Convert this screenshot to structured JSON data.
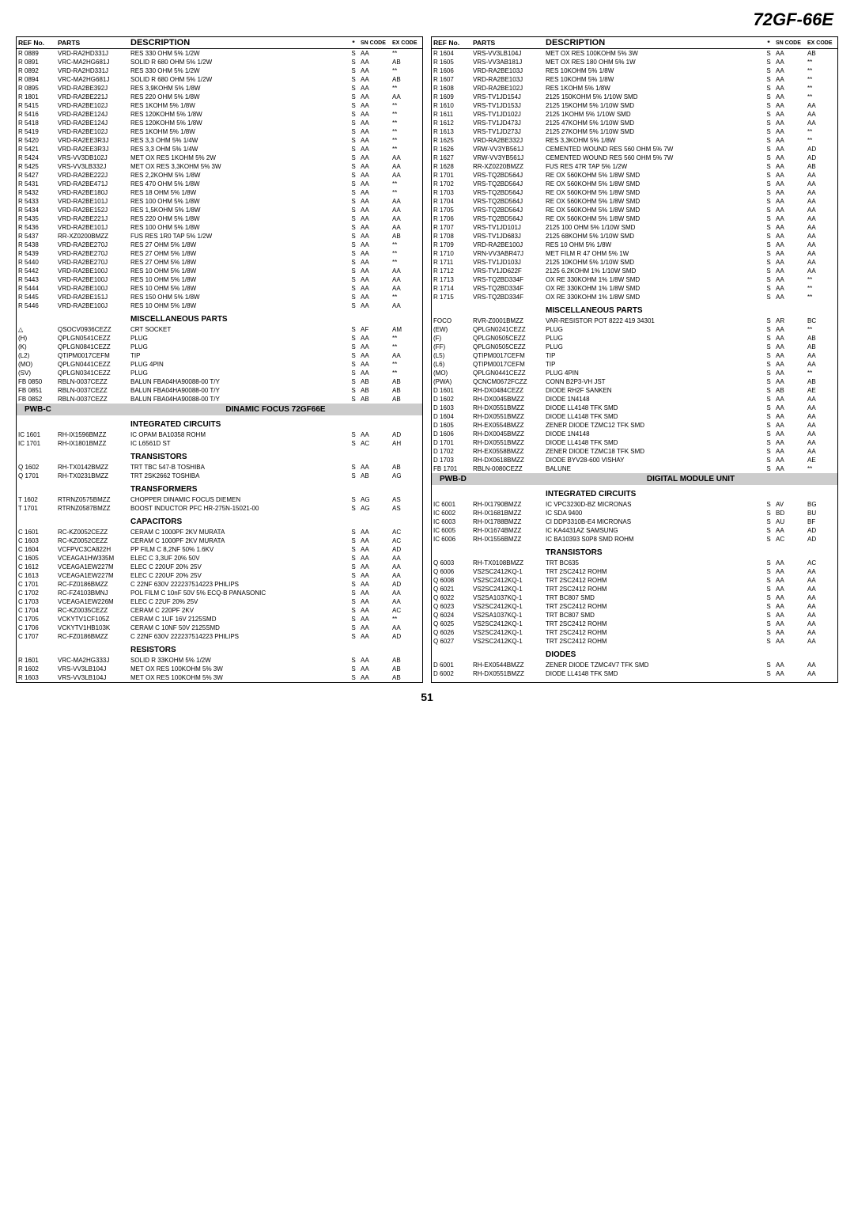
{
  "header": "72GF-66E",
  "page_number": "51",
  "table_headers": {
    "ref": "REF No.",
    "parts": "PARTS",
    "desc": "DESCRIPTION",
    "star": "*",
    "sn": "SN CODE",
    "ex": "EX CODE"
  },
  "left_rows": [
    {
      "r": "R 0889",
      "p": "VRD-RA2HD331J",
      "d": "RES 330 OHM 5% 1/2W",
      "s": "S",
      "sn": "AA",
      "ex": "**"
    },
    {
      "r": "R 0891",
      "p": "VRC-MA2HG681J",
      "d": "SOLID R 680 OHM 5% 1/2W",
      "s": "S",
      "sn": "AA",
      "ex": "AB"
    },
    {
      "r": "R 0892",
      "p": "VRD-RA2HD331J",
      "d": "RES 330 OHM 5% 1/2W",
      "s": "S",
      "sn": "AA",
      "ex": "**"
    },
    {
      "r": "R 0894",
      "p": "VRC-MA2HG681J",
      "d": "SOLID R 680 OHM 5% 1/2W",
      "s": "S",
      "sn": "AA",
      "ex": "AB"
    },
    {
      "r": "R 0895",
      "p": "VRD-RA2BE392J",
      "d": "RES 3,9KOHM 5% 1/8W",
      "s": "S",
      "sn": "AA",
      "ex": "**"
    },
    {
      "r": "R 1801",
      "p": "VRD-RA2BE221J",
      "d": "RES 220 OHM 5% 1/8W",
      "s": "S",
      "sn": "AA",
      "ex": "AA"
    },
    {
      "r": "R 5415",
      "p": "VRD-RA2BE102J",
      "d": "RES  1KOHM 5% 1/8W",
      "s": "S",
      "sn": "AA",
      "ex": "**"
    },
    {
      "r": "R 5416",
      "p": "VRD-RA2BE124J",
      "d": "RES 120KOHM 5% 1/8W",
      "s": "S",
      "sn": "AA",
      "ex": "**"
    },
    {
      "r": "R 5418",
      "p": "VRD-RA2BE124J",
      "d": "RES 120KOHM 5% 1/8W",
      "s": "S",
      "sn": "AA",
      "ex": "**"
    },
    {
      "r": "R 5419",
      "p": "VRD-RA2BE102J",
      "d": "RES  1KOHM 5% 1/8W",
      "s": "S",
      "sn": "AA",
      "ex": "**"
    },
    {
      "r": "R 5420",
      "p": "VRD-RA2EE3R3J",
      "d": "RES 3,3 OHM 5% 1/4W",
      "s": "S",
      "sn": "AA",
      "ex": "**"
    },
    {
      "r": "R 5421",
      "p": "VRD-RA2EE3R3J",
      "d": "RES 3,3 OHM 5% 1/4W",
      "s": "S",
      "sn": "AA",
      "ex": "**"
    },
    {
      "r": "R 5424",
      "p": "VRS-VV3DB102J",
      "d": "MET OX RES  1KOHM 5% 2W",
      "s": "S",
      "sn": "AA",
      "ex": "AA"
    },
    {
      "r": "R 5425",
      "p": "VRS-VV3LB332J",
      "d": "MET OX RES 3,3KOHM 5% 3W",
      "s": "S",
      "sn": "AA",
      "ex": "AA"
    },
    {
      "r": "R 5427",
      "p": "VRD-RA2BE222J",
      "d": "RES 2,2KOHM 5% 1/8W",
      "s": "S",
      "sn": "AA",
      "ex": "AA"
    },
    {
      "r": "R 5431",
      "p": "VRD-RA2BE471J",
      "d": "RES 470 OHM 5% 1/8W",
      "s": "S",
      "sn": "AA",
      "ex": "**"
    },
    {
      "r": "R 5432",
      "p": "VRD-RA2BE180J",
      "d": "RES 18 OHM 5% 1/8W",
      "s": "S",
      "sn": "AA",
      "ex": "**"
    },
    {
      "r": "R 5433",
      "p": "VRD-RA2BE101J",
      "d": "RES 100 OHM 5% 1/8W",
      "s": "S",
      "sn": "AA",
      "ex": "AA"
    },
    {
      "r": "R 5434",
      "p": "VRD-RA2BE152J",
      "d": "RES 1,5KOHM 5% 1/8W",
      "s": "S",
      "sn": "AA",
      "ex": "AA"
    },
    {
      "r": "R 5435",
      "p": "VRD-RA2BE221J",
      "d": "RES 220 OHM 5% 1/8W",
      "s": "S",
      "sn": "AA",
      "ex": "AA"
    },
    {
      "r": "R 5436",
      "p": "VRD-RA2BE101J",
      "d": "RES 100 OHM 5% 1/8W",
      "s": "S",
      "sn": "AA",
      "ex": "AA"
    },
    {
      "r": "R 5437",
      "p": "RR-XZ0200BMZZ",
      "d": "FUS RES 1R0 TAP 5% 1/2W",
      "s": "S",
      "sn": "AA",
      "ex": "AB"
    },
    {
      "r": "R 5438",
      "p": "VRD-RA2BE270J",
      "d": "RES 27 OHM 5% 1/8W",
      "s": "S",
      "sn": "AA",
      "ex": "**"
    },
    {
      "r": "R 5439",
      "p": "VRD-RA2BE270J",
      "d": "RES 27 OHM 5% 1/8W",
      "s": "S",
      "sn": "AA",
      "ex": "**"
    },
    {
      "r": "R 5440",
      "p": "VRD-RA2BE270J",
      "d": "RES 27 OHM 5% 1/8W",
      "s": "S",
      "sn": "AA",
      "ex": "**"
    },
    {
      "r": "R 5442",
      "p": "VRD-RA2BE100J",
      "d": "RES 10 OHM 5% 1/8W",
      "s": "S",
      "sn": "AA",
      "ex": "AA"
    },
    {
      "r": "R 5443",
      "p": "VRD-RA2BE100J",
      "d": "RES 10 OHM 5% 1/8W",
      "s": "S",
      "sn": "AA",
      "ex": "AA"
    },
    {
      "r": "R 5444",
      "p": "VRD-RA2BE100J",
      "d": "RES 10 OHM 5% 1/8W",
      "s": "S",
      "sn": "AA",
      "ex": "AA"
    },
    {
      "r": "R 5445",
      "p": "VRD-RA2BE151J",
      "d": "RES 150 OHM 5% 1/8W",
      "s": "S",
      "sn": "AA",
      "ex": "**"
    },
    {
      "r": "R 5446",
      "p": "VRD-RA2BE100J",
      "d": "RES 10 OHM 5% 1/8W",
      "s": "S",
      "sn": "AA",
      "ex": "AA"
    },
    {
      "section": "MISCELLANEOUS PARTS"
    },
    {
      "r": "△",
      "p": "QSOCV0936CEZZ",
      "d": "CRT SOCKET",
      "s": "S",
      "sn": "AF",
      "ex": "AM"
    },
    {
      "r": "(H)",
      "p": "QPLGN0541CEZZ",
      "d": "PLUG",
      "s": "S",
      "sn": "AA",
      "ex": "**"
    },
    {
      "r": "(K)",
      "p": "QPLGN0841CEZZ",
      "d": "PLUG",
      "s": "S",
      "sn": "AA",
      "ex": "**"
    },
    {
      "r": "(L2)",
      "p": "QTIPM0017CEFM",
      "d": "TIP",
      "s": "S",
      "sn": "AA",
      "ex": "AA"
    },
    {
      "r": "(MO)",
      "p": "QPLGN0441CEZZ",
      "d": "PLUG 4PIN",
      "s": "S",
      "sn": "AA",
      "ex": "**"
    },
    {
      "r": "(SV)",
      "p": "QPLGN0341CEZZ",
      "d": "PLUG",
      "s": "S",
      "sn": "AA",
      "ex": "**"
    },
    {
      "r": "FB 0850",
      "p": "RBLN-0037CEZZ",
      "d": "BALUN FBA04HA90088-00 T/Y",
      "s": "S",
      "sn": "AB",
      "ex": "AB"
    },
    {
      "r": "FB 0851",
      "p": "RBLN-0037CEZZ",
      "d": "BALUN FBA04HA90088-00 T/Y",
      "s": "S",
      "sn": "AB",
      "ex": "AB"
    },
    {
      "r": "FB 0852",
      "p": "RBLN-0037CEZZ",
      "d": "BALUN FBA04HA90088-00 T/Y",
      "s": "S",
      "sn": "AB",
      "ex": "AB"
    },
    {
      "banner": true,
      "left": "PWB-C",
      "right": "DINAMIC FOCUS 72GF66E"
    },
    {
      "section": "INTEGRATED CIRCUITS"
    },
    {
      "r": "IC 1601",
      "p": "RH-IX1596BMZZ",
      "d": "IC OPAM BA10358 ROHM",
      "s": "S",
      "sn": "AA",
      "ex": "AD"
    },
    {
      "r": "IC 1701",
      "p": "RH-IX1801BMZZ",
      "d": "IC L6561D ST",
      "s": "S",
      "sn": "AC",
      "ex": "AH"
    },
    {
      "section": "TRANSISTORS"
    },
    {
      "r": "Q 1602",
      "p": "RH-TX0142BMZZ",
      "d": "TRT TBC 547-B TOSHIBA",
      "s": "S",
      "sn": "AA",
      "ex": "AB"
    },
    {
      "r": "Q 1701",
      "p": "RH-TX0231BMZZ",
      "d": "TRT 2SK2662 TOSHIBA",
      "s": "S",
      "sn": "AB",
      "ex": "AG"
    },
    {
      "section": "TRANSFORMERS"
    },
    {
      "r": "T 1602",
      "p": "RTRNZ0575BMZZ",
      "d": "CHOPPER DINAMIC FOCUS DIEMEN",
      "s": "S",
      "sn": "AG",
      "ex": "AS"
    },
    {
      "r": "T 1701",
      "p": "RTRNZ0587BMZZ",
      "d": "BOOST INDUCTOR PFC HR-275N-15021-00",
      "s": "S",
      "sn": "AG",
      "ex": "AS"
    },
    {
      "section": "CAPACITORS"
    },
    {
      "r": "C 1601",
      "p": "RC-KZ0052CEZZ",
      "d": "CERAM C 1000PF 2KV MURATA",
      "s": "S",
      "sn": "AA",
      "ex": "AC"
    },
    {
      "r": "C 1603",
      "p": "RC-KZ0052CEZZ",
      "d": "CERAM C 1000PF 2KV MURATA",
      "s": "S",
      "sn": "AA",
      "ex": "AC"
    },
    {
      "r": "C 1604",
      "p": "VCFPVC3CA822H",
      "d": "PP FILM C 8,2NF 50% 1.6KV",
      "s": "S",
      "sn": "AA",
      "ex": "AD"
    },
    {
      "r": "C 1605",
      "p": "VCEAGA1HW335M",
      "d": "ELEC C 3,3UF 20% 50V",
      "s": "S",
      "sn": "AA",
      "ex": "AA"
    },
    {
      "r": "C 1612",
      "p": "VCEAGA1EW227M",
      "d": "ELEC C 220UF 20% 25V",
      "s": "S",
      "sn": "AA",
      "ex": "AA"
    },
    {
      "r": "C 1613",
      "p": "VCEAGA1EW227M",
      "d": "ELEC C 220UF 20% 25V",
      "s": "S",
      "sn": "AA",
      "ex": "AA"
    },
    {
      "r": "C 1701",
      "p": "RC-FZ0186BMZZ",
      "d": "C 22NF 630V 222237514223 PHILIPS",
      "s": "S",
      "sn": "AA",
      "ex": "AD"
    },
    {
      "r": "C 1702",
      "p": "RC-FZ4103BMNJ",
      "d": "POL FILM C 10nF 50V 5% ECQ-B PANASONIC",
      "s": "S",
      "sn": "AA",
      "ex": "AA"
    },
    {
      "r": "C 1703",
      "p": "VCEAGA1EW226M",
      "d": "ELEC C 22UF 20% 25V",
      "s": "S",
      "sn": "AA",
      "ex": "AA"
    },
    {
      "r": "C 1704",
      "p": "RC-KZ0035CEZZ",
      "d": "CERAM C 220PF 2KV",
      "s": "S",
      "sn": "AA",
      "ex": "AC"
    },
    {
      "r": "C 1705",
      "p": "VCKYTV1CF105Z",
      "d": "CERAM C 1UF 16V 2125SMD",
      "s": "S",
      "sn": "AA",
      "ex": "**"
    },
    {
      "r": "C 1706",
      "p": "VCKYTV1HB103K",
      "d": "CERAM C 10NF 50V 2125SMD",
      "s": "S",
      "sn": "AA",
      "ex": "AA"
    },
    {
      "r": "C 1707",
      "p": "RC-FZ0186BMZZ",
      "d": "C 22NF 630V 222237514223 PHILIPS",
      "s": "S",
      "sn": "AA",
      "ex": "AD"
    },
    {
      "section": "RESISTORS"
    },
    {
      "r": "R 1601",
      "p": "VRC-MA2HG333J",
      "d": "SOLID R 33KOHM 5% 1/2W",
      "s": "S",
      "sn": "AA",
      "ex": "AB"
    },
    {
      "r": "R 1602",
      "p": "VRS-VV3LB104J",
      "d": "MET OX RES 100KOHM 5% 3W",
      "s": "S",
      "sn": "AA",
      "ex": "AB"
    },
    {
      "r": "R 1603",
      "p": "VRS-VV3LB104J",
      "d": "MET OX RES 100KOHM 5% 3W",
      "s": "S",
      "sn": "AA",
      "ex": "AB"
    }
  ],
  "right_rows": [
    {
      "r": "R 1604",
      "p": "VRS-VV3LB104J",
      "d": "MET OX RES 100KOHM 5% 3W",
      "s": "S",
      "sn": "AA",
      "ex": "AB"
    },
    {
      "r": "R 1605",
      "p": "VRS-VV3AB181J",
      "d": "MET OX RES 180 OHM 5% 1W",
      "s": "S",
      "sn": "AA",
      "ex": "**"
    },
    {
      "r": "R 1606",
      "p": "VRD-RA2BE103J",
      "d": "RES 10KOHM 5% 1/8W",
      "s": "S",
      "sn": "AA",
      "ex": "**"
    },
    {
      "r": "R 1607",
      "p": "VRD-RA2BE103J",
      "d": "RES 10KOHM 5% 1/8W",
      "s": "S",
      "sn": "AA",
      "ex": "**"
    },
    {
      "r": "R 1608",
      "p": "VRD-RA2BE102J",
      "d": "RES  1KOHM 5% 1/8W",
      "s": "S",
      "sn": "AA",
      "ex": "**"
    },
    {
      "r": "R 1609",
      "p": "VRS-TV1JD154J",
      "d": "2125 150KOHM 5% 1/10W SMD",
      "s": "S",
      "sn": "AA",
      "ex": "**"
    },
    {
      "r": "R 1610",
      "p": "VRS-TV1JD153J",
      "d": "2125 15KOHM 5% 1/10W SMD",
      "s": "S",
      "sn": "AA",
      "ex": "AA"
    },
    {
      "r": "R 1611",
      "p": "VRS-TV1JD102J",
      "d": "2125  1KOHM 5% 1/10W SMD",
      "s": "S",
      "sn": "AA",
      "ex": "AA"
    },
    {
      "r": "R 1612",
      "p": "VRS-TV1JD473J",
      "d": "2125 47KOHM 5% 1/10W SMD",
      "s": "S",
      "sn": "AA",
      "ex": "AA"
    },
    {
      "r": "R 1613",
      "p": "VRS-TV1JD273J",
      "d": "2125 27KOHM 5% 1/10W SMD",
      "s": "S",
      "sn": "AA",
      "ex": "**"
    },
    {
      "r": "R 1625",
      "p": "VRD-RA2BE332J",
      "d": "RES 3,3KOHM 5% 1/8W",
      "s": "S",
      "sn": "AA",
      "ex": "**"
    },
    {
      "r": "R 1626",
      "p": "VRW-VV3YB561J",
      "d": "CEMENTED WOUND RES 560 OHM 5% 7W",
      "s": "S",
      "sn": "AA",
      "ex": "AD"
    },
    {
      "r": "R 1627",
      "p": "VRW-VV3YB561J",
      "d": "CEMENTED WOUND RES 560 OHM 5% 7W",
      "s": "S",
      "sn": "AA",
      "ex": "AD"
    },
    {
      "r": "R 1628",
      "p": "RR-XZ0220BMZZ",
      "d": "FUS RES 47R TAP 5% 1/2W",
      "s": "S",
      "sn": "AA",
      "ex": "AB"
    },
    {
      "r": "R 1701",
      "p": "VRS-TQ2BD564J",
      "d": "RE OX 560KOHM 5% 1/8W SMD",
      "s": "S",
      "sn": "AA",
      "ex": "AA"
    },
    {
      "r": "R 1702",
      "p": "VRS-TQ2BD564J",
      "d": "RE OX 560KOHM 5% 1/8W SMD",
      "s": "S",
      "sn": "AA",
      "ex": "AA"
    },
    {
      "r": "R 1703",
      "p": "VRS-TQ2BD564J",
      "d": "RE OX 560KOHM 5% 1/8W SMD",
      "s": "S",
      "sn": "AA",
      "ex": "AA"
    },
    {
      "r": "R 1704",
      "p": "VRS-TQ2BD564J",
      "d": "RE OX 560KOHM 5% 1/8W SMD",
      "s": "S",
      "sn": "AA",
      "ex": "AA"
    },
    {
      "r": "R 1705",
      "p": "VRS-TQ2BD564J",
      "d": "RE OX 560KOHM 5% 1/8W SMD",
      "s": "S",
      "sn": "AA",
      "ex": "AA"
    },
    {
      "r": "R 1706",
      "p": "VRS-TQ2BD564J",
      "d": "RE OX 560KOHM 5% 1/8W SMD",
      "s": "S",
      "sn": "AA",
      "ex": "AA"
    },
    {
      "r": "R 1707",
      "p": "VRS-TV1JD101J",
      "d": "2125 100 OHM 5% 1/10W SMD",
      "s": "S",
      "sn": "AA",
      "ex": "AA"
    },
    {
      "r": "R 1708",
      "p": "VRS-TV1JD683J",
      "d": "2125 68KOHM 5% 1/10W SMD",
      "s": "S",
      "sn": "AA",
      "ex": "AA"
    },
    {
      "r": "R 1709",
      "p": "VRD-RA2BE100J",
      "d": "RES 10 OHM 5% 1/8W",
      "s": "S",
      "sn": "AA",
      "ex": "AA"
    },
    {
      "r": "R 1710",
      "p": "VRN-VV3ABR47J",
      "d": "MET FILM R 47 OHM 5% 1W",
      "s": "S",
      "sn": "AA",
      "ex": "AA"
    },
    {
      "r": "R 1711",
      "p": "VRS-TV1JD103J",
      "d": "2125 10KOHM 5% 1/10W SMD",
      "s": "S",
      "sn": "AA",
      "ex": "AA"
    },
    {
      "r": "R 1712",
      "p": "VRS-TV1JD622F",
      "d": "2125 6.2KOHM 1% 1/10W SMD",
      "s": "S",
      "sn": "AA",
      "ex": "AA"
    },
    {
      "r": "R 1713",
      "p": "VRS-TQ2BD334F",
      "d": "OX RE 330KOHM 1% 1/8W SMD",
      "s": "S",
      "sn": "AA",
      "ex": "**"
    },
    {
      "r": "R 1714",
      "p": "VRS-TQ2BD334F",
      "d": "OX RE 330KOHM 1% 1/8W SMD",
      "s": "S",
      "sn": "AA",
      "ex": "**"
    },
    {
      "r": "R 1715",
      "p": "VRS-TQ2BD334F",
      "d": "OX RE 330KOHM 1% 1/8W SMD",
      "s": "S",
      "sn": "AA",
      "ex": "**"
    },
    {
      "section": "MISCELLANEOUS PARTS"
    },
    {
      "r": "FOCO",
      "p": "RVR-Z0001BMZZ",
      "d": "VAR-RESISTOR POT 8222 419 34301",
      "s": "S",
      "sn": "AR",
      "ex": "BC"
    },
    {
      "r": "(EW)",
      "p": "QPLGN0241CEZZ",
      "d": "PLUG",
      "s": "S",
      "sn": "AA",
      "ex": "**"
    },
    {
      "r": "(F)",
      "p": "QPLGN0505CEZZ",
      "d": "PLUG",
      "s": "S",
      "sn": "AA",
      "ex": "AB"
    },
    {
      "r": "(FF)",
      "p": "QPLGN0505CEZZ",
      "d": "PLUG",
      "s": "S",
      "sn": "AA",
      "ex": "AB"
    },
    {
      "r": "(L5)",
      "p": "QTIPM0017CEFM",
      "d": "TIP",
      "s": "S",
      "sn": "AA",
      "ex": "AA"
    },
    {
      "r": "(L6)",
      "p": "QTIPM0017CEFM",
      "d": "TIP",
      "s": "S",
      "sn": "AA",
      "ex": "AA"
    },
    {
      "r": "(MO)",
      "p": "QPLGN0441CEZZ",
      "d": "PLUG 4PIN",
      "s": "S",
      "sn": "AA",
      "ex": "**"
    },
    {
      "r": "(PWA)",
      "p": "QCNCM0672FCZZ",
      "d": "CONN B2P3-VH JST",
      "s": "S",
      "sn": "AA",
      "ex": "AB"
    },
    {
      "r": "D 1601",
      "p": "RH-DX0484CEZZ",
      "d": "DIODE RH2F SANKEN",
      "s": "S",
      "sn": "AB",
      "ex": "AE"
    },
    {
      "r": "D 1602",
      "p": "RH-DX0045BMZZ",
      "d": "DIODE 1N4148",
      "s": "S",
      "sn": "AA",
      "ex": "AA"
    },
    {
      "r": "D 1603",
      "p": "RH-DX0551BMZZ",
      "d": "DIODE LL4148 TFK SMD",
      "s": "S",
      "sn": "AA",
      "ex": "AA"
    },
    {
      "r": "D 1604",
      "p": "RH-DX0551BMZZ",
      "d": "DIODE LL4148 TFK SMD",
      "s": "S",
      "sn": "AA",
      "ex": "AA"
    },
    {
      "r": "D 1605",
      "p": "RH-EX0554BMZZ",
      "d": "ZENER DIODE TZMC12 TFK SMD",
      "s": "S",
      "sn": "AA",
      "ex": "AA"
    },
    {
      "r": "D 1606",
      "p": "RH-DX0045BMZZ",
      "d": "DIODE 1N4148",
      "s": "S",
      "sn": "AA",
      "ex": "AA"
    },
    {
      "r": "D 1701",
      "p": "RH-DX0551BMZZ",
      "d": "DIODE LL4148 TFK SMD",
      "s": "S",
      "sn": "AA",
      "ex": "AA"
    },
    {
      "r": "D 1702",
      "p": "RH-EX0558BMZZ",
      "d": "ZENER DIODE TZMC18 TFK SMD",
      "s": "S",
      "sn": "AA",
      "ex": "AA"
    },
    {
      "r": "D 1703",
      "p": "RH-DX0618BMZZ",
      "d": "DIODE BYV28-600 VISHAY",
      "s": "S",
      "sn": "AA",
      "ex": "AE"
    },
    {
      "r": "FB 1701",
      "p": "RBLN-0080CEZZ",
      "d": "BALUNE",
      "s": "S",
      "sn": "AA",
      "ex": "**"
    },
    {
      "banner": true,
      "left": "PWB-D",
      "right": "DIGITAL MODULE UNIT"
    },
    {
      "section": "INTEGRATED CIRCUITS"
    },
    {
      "r": "IC 6001",
      "p": "RH-IX1790BMZZ",
      "d": "IC VPC3230D-BZ MICRONAS",
      "s": "S",
      "sn": "AV",
      "ex": "BG"
    },
    {
      "r": "IC 6002",
      "p": "RH-IX1681BMZZ",
      "d": "IC SDA 9400",
      "s": "S",
      "sn": "BD",
      "ex": "BU"
    },
    {
      "r": "IC 6003",
      "p": "RH-IX1788BMZZ",
      "d": "CI DDP3310B-E4 MICRONAS",
      "s": "S",
      "sn": "AU",
      "ex": "BF"
    },
    {
      "r": "IC 6005",
      "p": "RH-IX1674BMZZ",
      "d": "IC KA4431AZ SAMSUNG",
      "s": "S",
      "sn": "AA",
      "ex": "AD"
    },
    {
      "r": "IC 6006",
      "p": "RH-IX1556BMZZ",
      "d": "IC BA10393 S0P8 SMD ROHM",
      "s": "S",
      "sn": "AC",
      "ex": "AD"
    },
    {
      "section": "TRANSISTORS"
    },
    {
      "r": "Q 6003",
      "p": "RH-TX0108BMZZ",
      "d": "TRT BC635",
      "s": "S",
      "sn": "AA",
      "ex": "AC"
    },
    {
      "r": "Q 6006",
      "p": "VS2SC2412KQ-1",
      "d": "TRT 2SC2412 ROHM",
      "s": "S",
      "sn": "AA",
      "ex": "AA"
    },
    {
      "r": "Q 6008",
      "p": "VS2SC2412KQ-1",
      "d": "TRT 2SC2412 ROHM",
      "s": "S",
      "sn": "AA",
      "ex": "AA"
    },
    {
      "r": "Q 6021",
      "p": "VS2SC2412KQ-1",
      "d": "TRT 2SC2412 ROHM",
      "s": "S",
      "sn": "AA",
      "ex": "AA"
    },
    {
      "r": "Q 6022",
      "p": "VS2SA1037KQ-1",
      "d": "TRT BC807 SMD",
      "s": "S",
      "sn": "AA",
      "ex": "AA"
    },
    {
      "r": "Q 6023",
      "p": "VS2SC2412KQ-1",
      "d": "TRT 2SC2412 ROHM",
      "s": "S",
      "sn": "AA",
      "ex": "AA"
    },
    {
      "r": "Q 6024",
      "p": "VS2SA1037KQ-1",
      "d": "TRT BC807 SMD",
      "s": "S",
      "sn": "AA",
      "ex": "AA"
    },
    {
      "r": "Q 6025",
      "p": "VS2SC2412KQ-1",
      "d": "TRT 2SC2412 ROHM",
      "s": "S",
      "sn": "AA",
      "ex": "AA"
    },
    {
      "r": "Q 6026",
      "p": "VS2SC2412KQ-1",
      "d": "TRT 2SC2412 ROHM",
      "s": "S",
      "sn": "AA",
      "ex": "AA"
    },
    {
      "r": "Q 6027",
      "p": "VS2SC2412KQ-1",
      "d": "TRT 2SC2412 ROHM",
      "s": "S",
      "sn": "AA",
      "ex": "AA"
    },
    {
      "section": "DIODES"
    },
    {
      "r": "D 6001",
      "p": "RH-EX0544BMZZ",
      "d": "ZENER DIODE TZMC4V7 TFK SMD",
      "s": "S",
      "sn": "AA",
      "ex": "AA"
    },
    {
      "r": "D 6002",
      "p": "RH-DX0551BMZZ",
      "d": "DIODE LL4148 TFK SMD",
      "s": "S",
      "sn": "AA",
      "ex": "AA"
    }
  ]
}
